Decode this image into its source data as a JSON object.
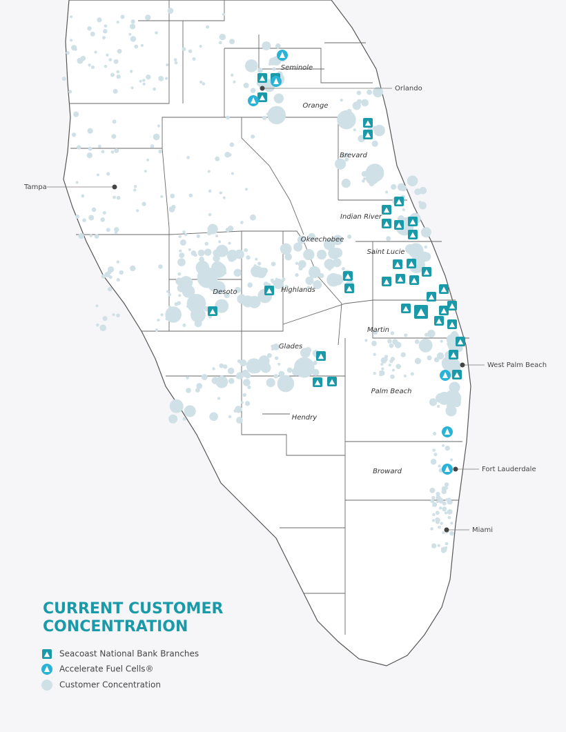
{
  "title": [
    "CURRENT CUSTOMER",
    "CONCENTRATION"
  ],
  "legend": [
    "Seacoast National Bank Branches",
    "Accelerate Fuel Cells®",
    "Customer Concentration"
  ],
  "counties": [
    "Seminole",
    "Orange",
    "Brevard",
    "Indian River",
    "Okeechobee",
    "Saint Lucie",
    "Desoto",
    "Highlands",
    "Martin",
    "Glades",
    "Palm Beach",
    "Hendry",
    "Broward"
  ],
  "cities": [
    "Orlando",
    "Tampa",
    "West Palm Beach",
    "Fort Lauderdale",
    "Miami"
  ]
}
